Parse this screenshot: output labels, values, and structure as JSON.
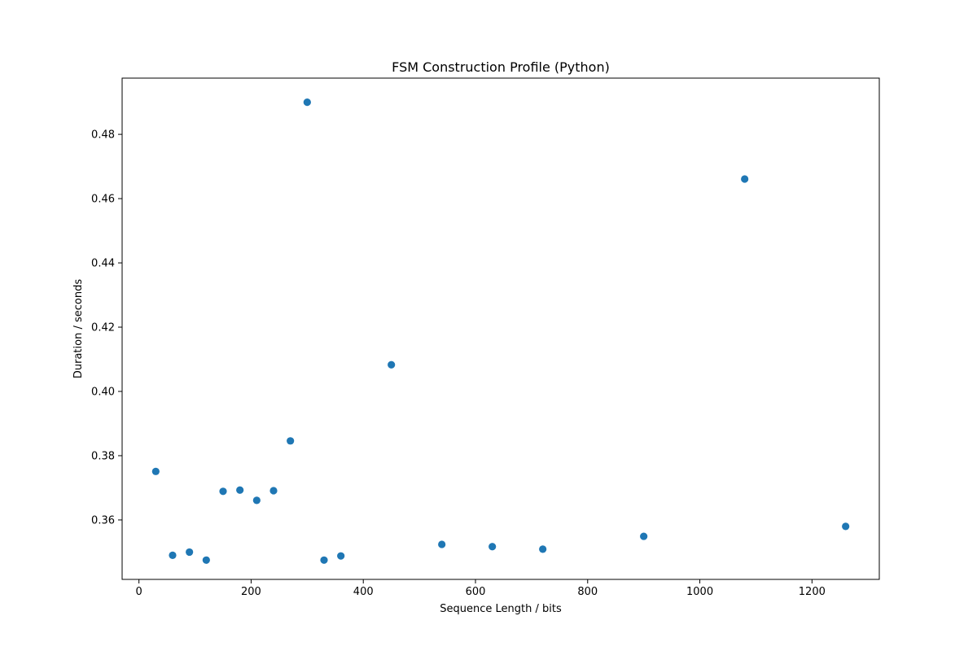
{
  "chart_data": {
    "type": "scatter",
    "title": "FSM Construction Profile (Python)",
    "xlabel": "Sequence Length / bits",
    "ylabel": "Duration / seconds",
    "xlim": [
      -30,
      1320
    ],
    "ylim": [
      0.3415,
      0.4975
    ],
    "xticks": [
      0,
      200,
      400,
      600,
      800,
      1000,
      1200
    ],
    "yticks": [
      0.36,
      0.38,
      0.4,
      0.42,
      0.44,
      0.46,
      0.48
    ],
    "ytick_labels": [
      "0.36",
      "0.38",
      "0.40",
      "0.42",
      "0.44",
      "0.46",
      "0.48"
    ],
    "grid": false,
    "marker_color": "#1f77b4",
    "series": [
      {
        "x": [
          30,
          60,
          90,
          120,
          150,
          180,
          210,
          240,
          270,
          300,
          330,
          360,
          450,
          540,
          630,
          720,
          900,
          1080,
          1260
        ],
        "y": [
          0.3751,
          0.349,
          0.35,
          0.3475,
          0.3689,
          0.3693,
          0.3661,
          0.3691,
          0.3846,
          0.49,
          0.3475,
          0.3488,
          0.4083,
          0.3524,
          0.3517,
          0.3509,
          0.3549,
          0.4661,
          0.358
        ]
      }
    ]
  }
}
